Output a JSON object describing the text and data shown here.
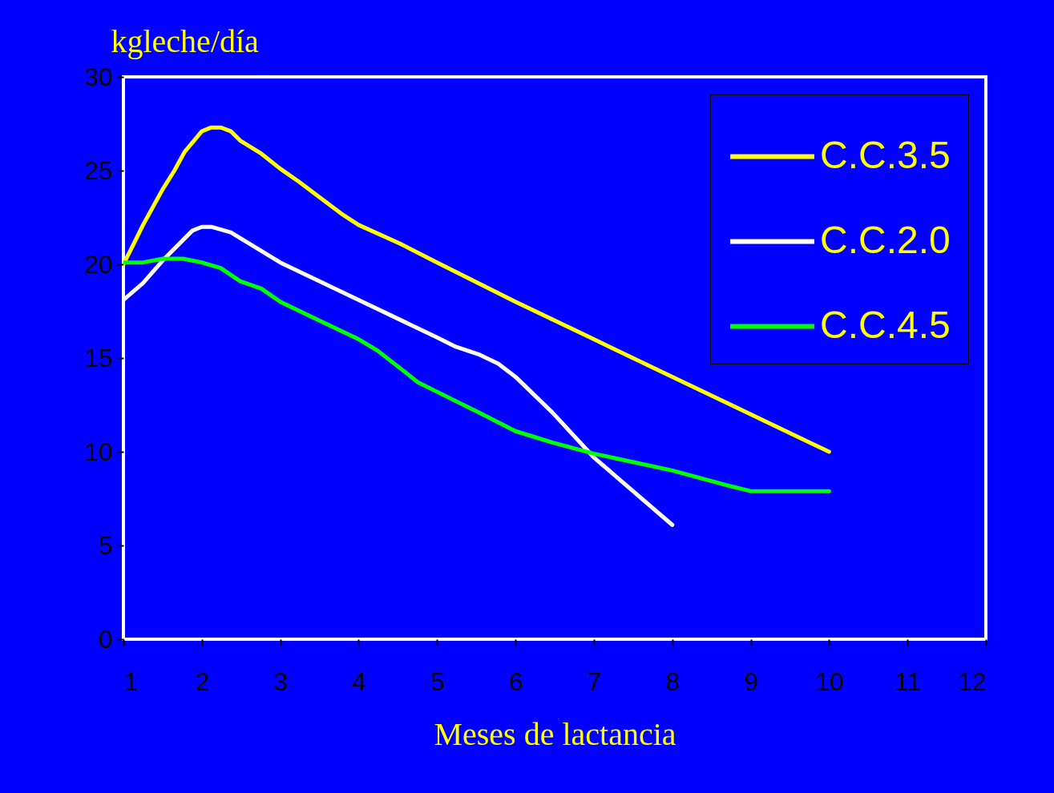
{
  "chart_data": {
    "type": "line",
    "xlabel": "Meses de lactancia",
    "ylabel": "kgleche/día",
    "xlim": [
      1,
      12
    ],
    "xticks": [
      1,
      2,
      3,
      4,
      5,
      6,
      7,
      8,
      9,
      10,
      11,
      12
    ],
    "ylim": [
      0,
      30
    ],
    "yticks": [
      0,
      5,
      10,
      15,
      20,
      25,
      30
    ],
    "grid": false,
    "legend": "top right",
    "marker": "none",
    "line_style": "solid",
    "series": [
      {
        "name": "C.C.3.5",
        "color": "#ffff00",
        "x": [
          1,
          1.12,
          1.25,
          1.5,
          1.65,
          1.78,
          1.9,
          2,
          2.12,
          2.24,
          2.37,
          2.49,
          2.76,
          3,
          3.24,
          3.78,
          4,
          4.53,
          5,
          6,
          7,
          8,
          9,
          10
        ],
        "values": [
          20,
          21,
          22.1,
          24,
          25,
          26,
          26.6,
          27.1,
          27.3,
          27.3,
          27.1,
          26.6,
          25.9,
          25.1,
          24.4,
          22.7,
          22.1,
          21.1,
          20.1,
          18,
          16,
          14,
          12,
          10
        ]
      },
      {
        "name": "C.C.2.0",
        "color": "#ffffff",
        "x": [
          1,
          1.25,
          1.5,
          1.88,
          2,
          2.12,
          2.37,
          3,
          4,
          5,
          5.24,
          5.53,
          5.78,
          6,
          6.47,
          7,
          8
        ],
        "values": [
          18.1,
          19,
          20.2,
          21.8,
          22,
          22,
          21.7,
          20.1,
          18.1,
          16.1,
          15.6,
          15.2,
          14.7,
          14,
          12.1,
          9.7,
          6.1
        ]
      },
      {
        "name": "C.C.4.5",
        "color": "#00ff00",
        "x": [
          1,
          1.25,
          1.5,
          1.76,
          2,
          2.24,
          2.49,
          2.76,
          3,
          3.5,
          4,
          4.24,
          4.76,
          5,
          5.53,
          6,
          6.47,
          7,
          8,
          8.71,
          9,
          10
        ],
        "values": [
          20.1,
          20.1,
          20.3,
          20.3,
          20.1,
          19.8,
          19.1,
          18.7,
          18,
          17,
          16,
          15.4,
          13.7,
          13.2,
          12.1,
          11.1,
          10.5,
          9.9,
          9,
          8.2,
          7.9,
          7.9
        ]
      }
    ]
  }
}
